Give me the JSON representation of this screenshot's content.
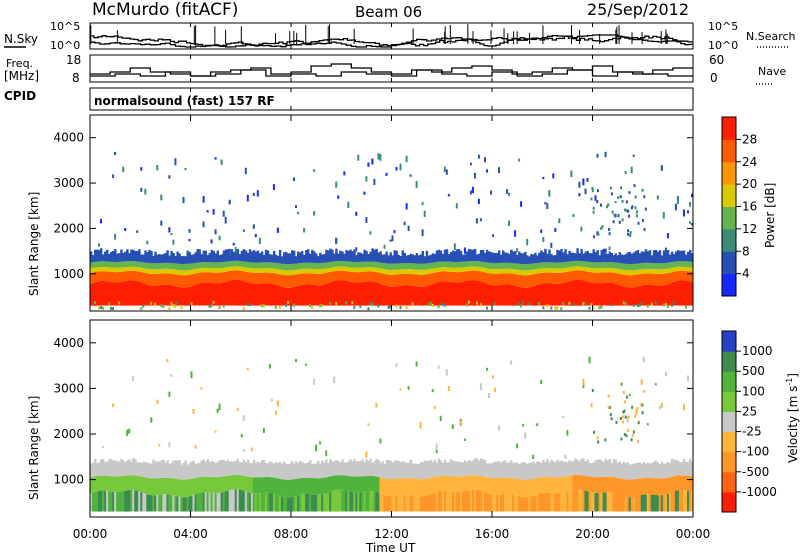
{
  "header": {
    "station": "McMurdo (fitACF)",
    "beam": "Beam 06",
    "date": "25/Sep/2012"
  },
  "left_labels": {
    "nsky": "N.Sky",
    "freq_line1": "Freq.",
    "freq_line2": "[MHz]",
    "cpid": "CPID"
  },
  "right_labels": {
    "nsearch": "N.Search",
    "nave": "Nave"
  },
  "panels": {
    "noise_left_ticks": [
      "10^5",
      "10^0"
    ],
    "noise_right_ticks": [
      "10^5",
      "10^0"
    ],
    "freq_left_ticks": [
      "18",
      "8"
    ],
    "freq_right_ticks": [
      "60",
      "0"
    ],
    "cpid_text": "normalsound (fast) 157 RF"
  },
  "x_axis": {
    "label": "Time UT",
    "ticks": [
      "00:00",
      "04:00",
      "08:00",
      "12:00",
      "16:00",
      "20:00",
      "00:00"
    ]
  },
  "y_axis": {
    "label": "Slant Range [km]",
    "ticks": [
      "1000",
      "2000",
      "3000",
      "4000"
    ]
  },
  "power_scale": {
    "label": "Power [dB]",
    "ticks": [
      "4",
      "8",
      "12",
      "16",
      "20",
      "24",
      "28"
    ],
    "colors": [
      "#1428ff",
      "#2850b4",
      "#3c8c78",
      "#64b450",
      "#dcc800",
      "#ff9600",
      "#ff5a00",
      "#ff1e00"
    ]
  },
  "velocity_scale": {
    "label": "Velocity [m s",
    "label_sup": "-1",
    "label_close": "]",
    "ticks": [
      "1000",
      "500",
      "100",
      "25",
      "-25",
      "-100",
      "-500",
      "-1000"
    ],
    "colors": [
      "#2840c8",
      "#3c8c50",
      "#50b43c",
      "#78c83c",
      "#c8c8c8",
      "#ffb43c",
      "#ff9628",
      "#ff6414",
      "#ff1e00"
    ]
  },
  "chart_data": [
    {
      "type": "heatmap",
      "title": "Power",
      "xlabel": "Time UT",
      "ylabel": "Slant Range [km]",
      "xlim": [
        "00:00",
        "24:00"
      ],
      "ylim": [
        180,
        4500
      ],
      "colorbar": {
        "label": "Power [dB]",
        "range": [
          0,
          32
        ],
        "ticks": [
          4,
          8,
          12,
          16,
          20,
          24,
          28
        ]
      },
      "bands": [
        {
          "range_km": [
            300,
            800
          ],
          "power_db": 28
        },
        {
          "range_km": [
            800,
            1100
          ],
          "power_db": 22
        },
        {
          "range_km": [
            1100,
            1300
          ],
          "power_db": 14
        },
        {
          "range_km": [
            1300,
            1600
          ],
          "power_db": 6
        }
      ]
    },
    {
      "type": "heatmap",
      "title": "Velocity",
      "xlabel": "Time UT",
      "ylabel": "Slant Range [km]",
      "xlim": [
        "00:00",
        "24:00"
      ],
      "ylim": [
        180,
        4500
      ],
      "colorbar": {
        "label": "Velocity [m s-1]",
        "ticks": [
          1000,
          500,
          100,
          25,
          -25,
          -100,
          -500,
          -1000
        ]
      },
      "segments": [
        {
          "time": [
            "00:00",
            "06:00"
          ],
          "dominant_velocity": 25
        },
        {
          "time": [
            "06:00",
            "12:00"
          ],
          "dominant_velocity": 100
        },
        {
          "time": [
            "12:00",
            "20:00"
          ],
          "dominant_velocity": -100
        },
        {
          "time": [
            "20:00",
            "24:00"
          ],
          "dominant_velocity": -100
        }
      ]
    }
  ]
}
